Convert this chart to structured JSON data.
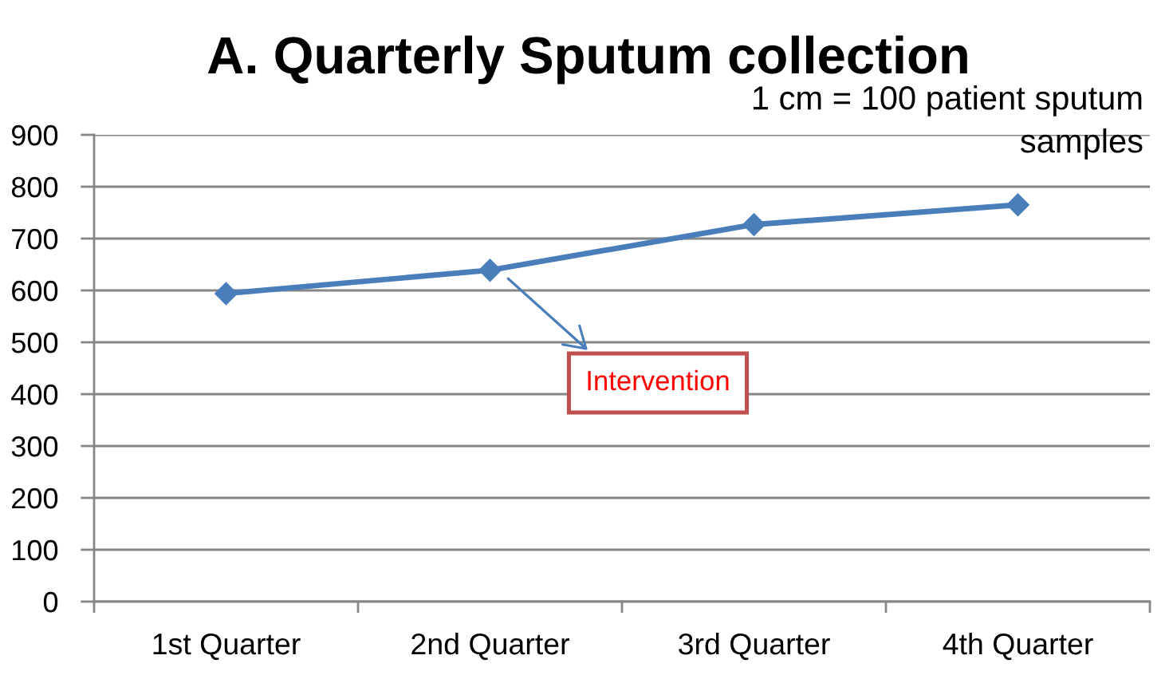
{
  "chart_data": {
    "type": "line",
    "title": "A. Quarterly Sputum collection",
    "subtitle": "1 cm = 100 patient sputum\nsamples",
    "categories": [
      "1st Quarter",
      "2nd Quarter",
      "3rd Quarter",
      "4th Quarter"
    ],
    "series": [
      {
        "color": "#4a7ebb",
        "values": [
          594,
          639,
          727,
          765
        ]
      }
    ],
    "ylim": [
      0,
      900
    ],
    "yticks": [
      0,
      100,
      200,
      300,
      400,
      500,
      600,
      700,
      800,
      900
    ],
    "grid": "y",
    "marker": "diamond",
    "line_style": "solid",
    "annotations": [
      "Intervention"
    ]
  }
}
